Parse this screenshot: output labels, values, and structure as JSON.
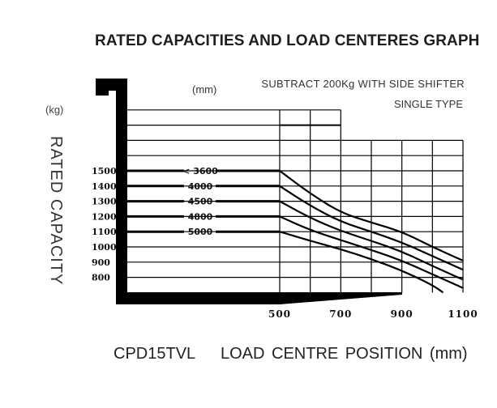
{
  "header": {
    "title": "RATED CAPACITIES AND LOAD CENTERES GRAPH",
    "unit_mm": "(mm)",
    "note_line1": "SUBTRACT  200Kg  WITH  SIDE  SHIFTER",
    "note_line2": "SINGLE TYPE"
  },
  "axis": {
    "y_unit": "(kg)",
    "y_label": "RATED  CAPACITY",
    "x_label": "LOAD  CENTRE  POSITION (mm)",
    "model": "CPD15TVL",
    "y_ticks": [
      "1500",
      "1400",
      "1300",
      "1200",
      "1100",
      "1000",
      "900",
      "800"
    ],
    "x_ticks": [
      "500",
      "700",
      "900",
      "1100"
    ]
  },
  "chart_data": {
    "type": "line",
    "title": "RATED CAPACITIES AND LOAD CENTERES GRAPH",
    "subtitle": "SUBTRACT 200Kg WITH SIDE SHIFTER / SINGLE TYPE",
    "model": "CPD15TVL",
    "xlabel": "LOAD CENTRE POSITION (mm)",
    "ylabel": "RATED CAPACITY (kg)",
    "legend_title": "Lift height (mm)",
    "legend_position": "inline on curves",
    "x_ticks": [
      500,
      700,
      900,
      1100
    ],
    "y_ticks": [
      800,
      900,
      1000,
      1100,
      1200,
      1300,
      1400,
      1500
    ],
    "xlim": [
      500,
      1100
    ],
    "ylim": [
      700,
      1900
    ],
    "grid": true,
    "x": [
      500,
      600,
      700,
      800,
      900,
      1000,
      1100
    ],
    "series": [
      {
        "name": "< 3600",
        "values": [
          1500,
          1350,
          1225,
          1160,
          1100,
          1000,
          910
        ]
      },
      {
        "name": "4000",
        "values": [
          1400,
          1270,
          1165,
          1100,
          1030,
          940,
          850
        ]
      },
      {
        "name": "4500",
        "values": [
          1300,
          1190,
          1105,
          1040,
          970,
          875,
          785
        ]
      },
      {
        "name": "4800",
        "values": [
          1200,
          1110,
          1045,
          980,
          910,
          820,
          730
        ]
      },
      {
        "name": "5000",
        "values": [
          1100,
          1040,
          985,
          920,
          845,
          750,
          null
        ]
      }
    ]
  }
}
